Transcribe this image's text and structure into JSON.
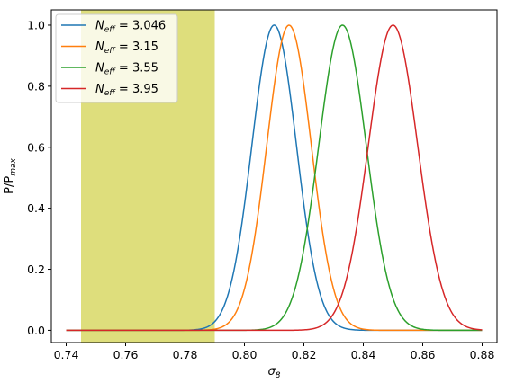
{
  "chart_data": {
    "type": "line",
    "title": "",
    "xlabel": "σ",
    "xlabel_sub": "8",
    "ylabel": "P/P",
    "ylabel_sub": "max",
    "xlim": [
      0.735,
      0.885
    ],
    "ylim": [
      -0.04,
      1.05
    ],
    "xticks": [
      0.74,
      0.76,
      0.78,
      0.8,
      0.82,
      0.84,
      0.86,
      0.88
    ],
    "xtick_labels": [
      "0.74",
      "0.76",
      "0.78",
      "0.80",
      "0.82",
      "0.84",
      "0.86",
      "0.88"
    ],
    "yticks": [
      0.0,
      0.2,
      0.4,
      0.6,
      0.8,
      1.0
    ],
    "ytick_labels": [
      "0.0",
      "0.2",
      "0.4",
      "0.6",
      "0.8",
      "1.0"
    ],
    "grid": false,
    "legend_position": "top-left",
    "shaded_band": {
      "x0": 0.745,
      "x1": 0.79,
      "color": "#dede7c"
    },
    "x_range": [
      0.74,
      0.88
    ],
    "series": [
      {
        "legend_sym": "N",
        "legend_sub": "eff",
        "legend_value": " = 3.046",
        "color": "#1f77b4",
        "mu": 0.81,
        "sigma": 0.0075,
        "peak": 1.0
      },
      {
        "legend_sym": "N",
        "legend_sub": "eff",
        "legend_value": " = 3.15",
        "color": "#ff7f0e",
        "mu": 0.815,
        "sigma": 0.0075,
        "peak": 1.0
      },
      {
        "legend_sym": "N",
        "legend_sub": "eff",
        "legend_value": " = 3.55",
        "color": "#2ca02c",
        "mu": 0.833,
        "sigma": 0.008,
        "peak": 1.0
      },
      {
        "legend_sym": "N",
        "legend_sub": "eff",
        "legend_value": " = 3.95",
        "color": "#d62728",
        "mu": 0.85,
        "sigma": 0.0083,
        "peak": 1.0
      }
    ]
  }
}
